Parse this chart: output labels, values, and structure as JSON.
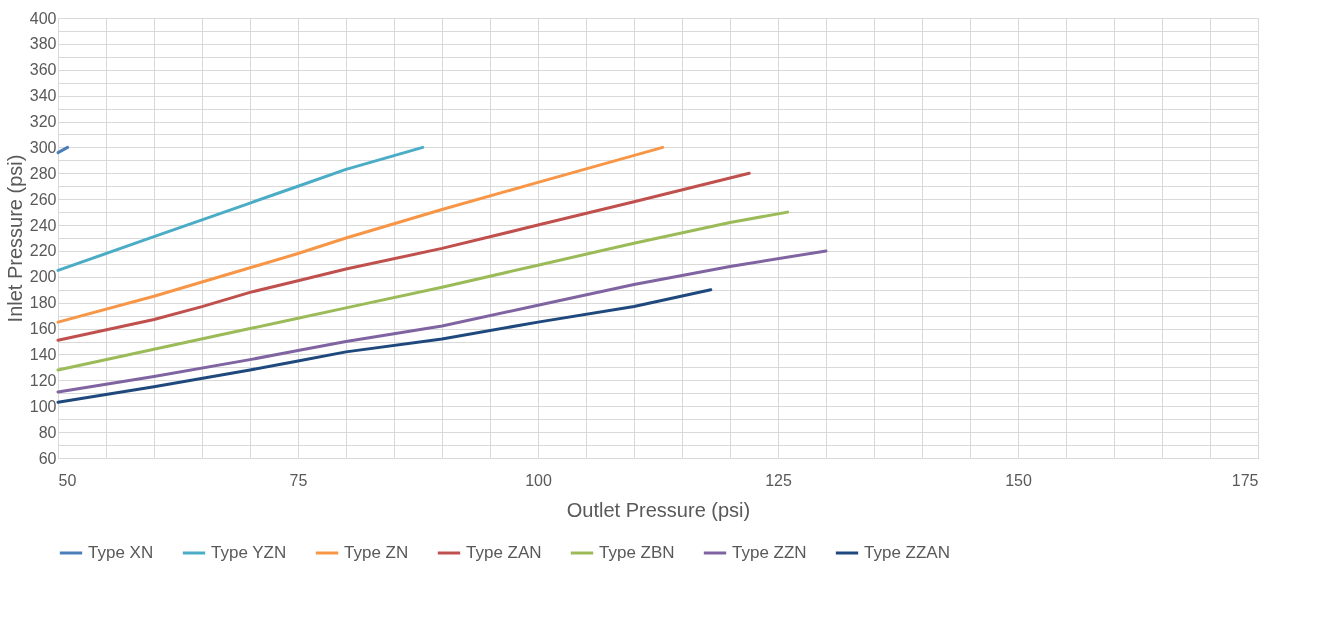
{
  "chart_data": {
    "type": "line",
    "xlabel": "Outlet Pressure (psi)",
    "ylabel": "Inlet Pressure (psi)",
    "xlim": [
      50,
      175
    ],
    "ylim": [
      60,
      400
    ],
    "xticks": [
      50,
      {
        "value": 55,
        "label": null
      },
      {
        "value": 60,
        "label": null
      },
      {
        "value": 65,
        "label": null
      },
      {
        "value": 70,
        "label": null
      },
      75,
      {
        "value": 80,
        "label": null
      },
      {
        "value": 85,
        "label": null
      },
      {
        "value": 90,
        "label": null
      },
      {
        "value": 95,
        "label": null
      },
      100,
      {
        "value": 105,
        "label": null
      },
      {
        "value": 110,
        "label": null
      },
      {
        "value": 115,
        "label": null
      },
      {
        "value": 120,
        "label": null
      },
      125,
      {
        "value": 130,
        "label": null
      },
      {
        "value": 135,
        "label": null
      },
      {
        "value": 140,
        "label": null
      },
      {
        "value": 145,
        "label": null
      },
      150,
      {
        "value": 155,
        "label": null
      },
      {
        "value": 160,
        "label": null
      },
      {
        "value": 165,
        "label": null
      },
      {
        "value": 170,
        "label": null
      },
      175
    ],
    "yticks": [
      60,
      {
        "value": 70,
        "label": null
      },
      80,
      {
        "value": 90,
        "label": null
      },
      100,
      {
        "value": 110,
        "label": null
      },
      120,
      {
        "value": 130,
        "label": null
      },
      140,
      {
        "value": 150,
        "label": null
      },
      160,
      {
        "value": 170,
        "label": null
      },
      180,
      {
        "value": 190,
        "label": null
      },
      200,
      {
        "value": 210,
        "label": null
      },
      220,
      {
        "value": 230,
        "label": null
      },
      240,
      {
        "value": 250,
        "label": null
      },
      260,
      {
        "value": 270,
        "label": null
      },
      280,
      {
        "value": 290,
        "label": null
      },
      300,
      {
        "value": 310,
        "label": null
      },
      320,
      {
        "value": 330,
        "label": null
      },
      340,
      {
        "value": 350,
        "label": null
      },
      360,
      {
        "value": 370,
        "label": null
      },
      380,
      {
        "value": 390,
        "label": null
      },
      400
    ],
    "grid": true,
    "legend": "bottom",
    "marker": "none",
    "line_style": "solid",
    "series": [
      {
        "name": "Type XN",
        "color": "#4a7ebb",
        "x": [
          50,
          51
        ],
        "values": [
          296,
          300
        ]
      },
      {
        "name": "Type YZN",
        "color": "#4bacc6",
        "x": [
          50,
          60,
          70,
          75,
          80,
          88
        ],
        "values": [
          205,
          231,
          257,
          270,
          283,
          300
        ]
      },
      {
        "name": "Type ZN",
        "color": "#f79646",
        "x": [
          50,
          60,
          70,
          75,
          80,
          90,
          100,
          113
        ],
        "values": [
          165,
          185,
          207,
          218,
          230,
          252,
          273,
          300
        ]
      },
      {
        "name": "Type ZAN",
        "color": "#c0504d",
        "x": [
          50,
          60,
          65,
          70,
          75,
          80,
          90,
          100,
          110,
          122
        ],
        "values": [
          151,
          167,
          177,
          188,
          197,
          206,
          222,
          240,
          258,
          280
        ]
      },
      {
        "name": "Type ZBN",
        "color": "#9bbb59",
        "x": [
          50,
          60,
          70,
          75,
          80,
          90,
          100,
          110,
          120,
          126
        ],
        "values": [
          128,
          144,
          160,
          168,
          176,
          192,
          209,
          226,
          242,
          250
        ]
      },
      {
        "name": "Type ZZN",
        "color": "#8064a2",
        "x": [
          50,
          60,
          70,
          75,
          80,
          90,
          100,
          110,
          120,
          130
        ],
        "values": [
          111,
          123,
          136,
          143,
          150,
          162,
          178,
          194,
          208,
          220
        ]
      },
      {
        "name": "Type ZZAN",
        "color": "#1f497d",
        "x": [
          50,
          60,
          70,
          75,
          80,
          90,
          100,
          110,
          118
        ],
        "values": [
          103,
          115,
          128,
          135,
          142,
          152,
          165,
          177,
          190
        ]
      }
    ]
  }
}
